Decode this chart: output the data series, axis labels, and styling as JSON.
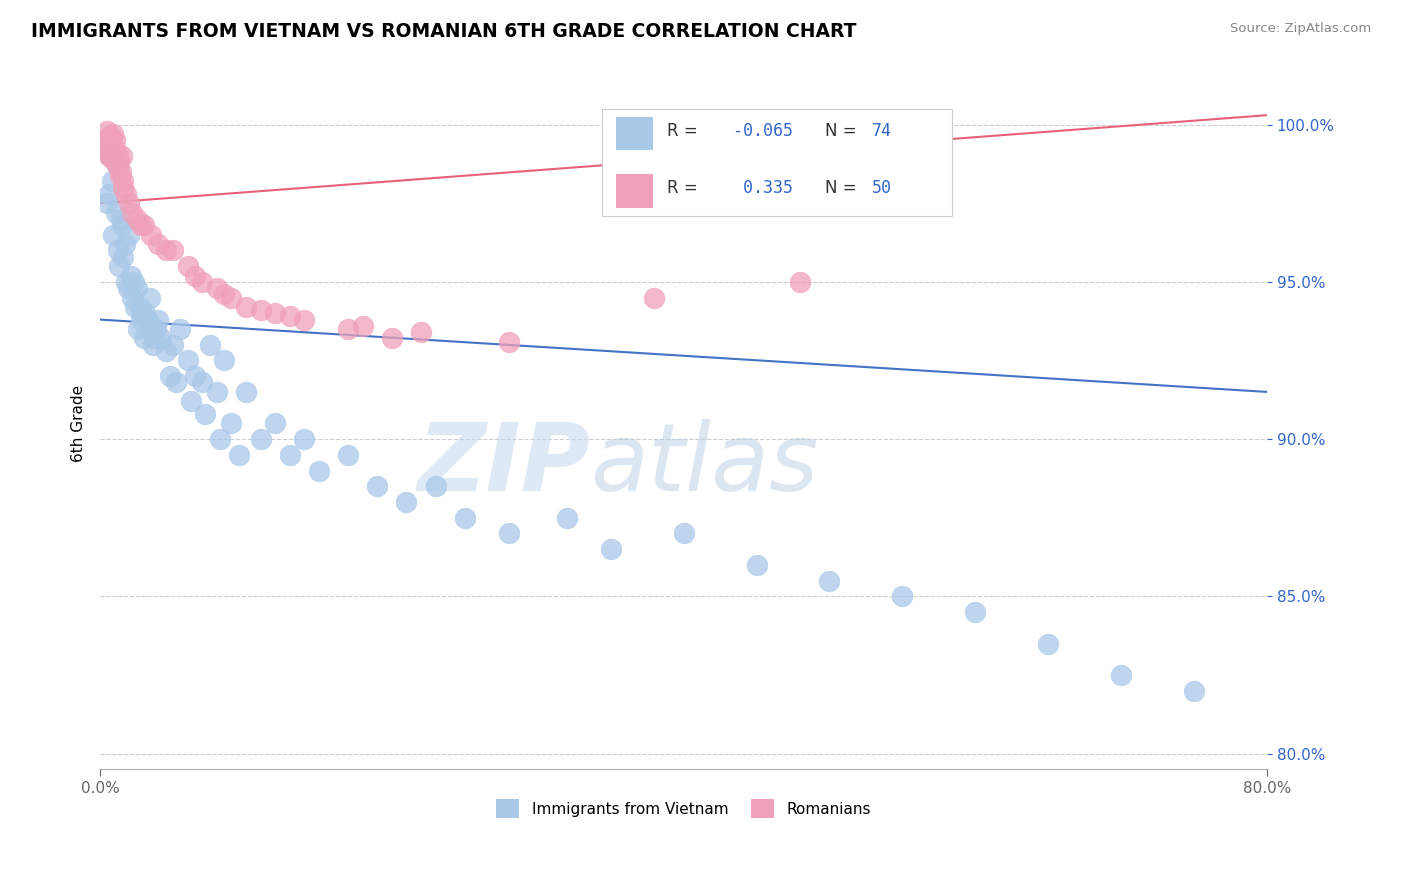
{
  "title": "IMMIGRANTS FROM VIETNAM VS ROMANIAN 6TH GRADE CORRELATION CHART",
  "source": "Source: ZipAtlas.com",
  "ylabel": "6th Grade",
  "yticks": [
    80.0,
    85.0,
    90.0,
    95.0,
    100.0
  ],
  "ytick_labels": [
    "80.0%",
    "85.0%",
    "90.0%",
    "95.0%",
    "100.0%"
  ],
  "xlim": [
    0.0,
    80.0
  ],
  "ylim": [
    79.5,
    101.5
  ],
  "legend1_label": "Immigrants from Vietnam",
  "legend2_label": "Romanians",
  "R_blue": -0.065,
  "N_blue": 74,
  "R_pink": 0.335,
  "N_pink": 50,
  "blue_color": "#A8C8E8",
  "pink_color": "#F0A0B8",
  "blue_line_color": "#4472C4",
  "pink_line_color": "#E8607A",
  "watermark_zip": "ZIP",
  "watermark_atlas": "atlas",
  "blue_trend_y0": 93.8,
  "blue_trend_y1": 91.5,
  "pink_trend_y0": 97.5,
  "pink_trend_y1": 100.3,
  "vietnam_x": [
    0.5,
    0.6,
    0.7,
    0.8,
    0.9,
    1.0,
    1.1,
    1.2,
    1.3,
    1.4,
    1.5,
    1.6,
    1.7,
    1.8,
    1.9,
    2.0,
    2.1,
    2.2,
    2.3,
    2.4,
    2.5,
    2.6,
    2.7,
    2.8,
    2.9,
    3.0,
    3.2,
    3.4,
    3.6,
    3.8,
    4.0,
    4.2,
    4.5,
    5.0,
    5.5,
    6.0,
    6.5,
    7.0,
    7.5,
    8.0,
    8.5,
    9.0,
    10.0,
    11.0,
    12.0,
    13.0,
    14.0,
    15.0,
    17.0,
    19.0,
    21.0,
    23.0,
    25.0,
    28.0,
    32.0,
    35.0,
    40.0,
    45.0,
    50.0,
    55.0,
    60.0,
    65.0,
    70.0,
    75.0,
    3.1,
    3.3,
    3.5,
    3.7,
    4.8,
    5.2,
    6.2,
    7.2,
    8.2,
    9.5
  ],
  "vietnam_y": [
    97.5,
    97.8,
    99.0,
    98.2,
    96.5,
    98.8,
    97.2,
    96.0,
    95.5,
    97.0,
    96.8,
    95.8,
    96.2,
    95.0,
    94.8,
    96.5,
    95.2,
    94.5,
    95.0,
    94.2,
    94.8,
    93.5,
    94.2,
    93.8,
    94.0,
    93.2,
    93.8,
    94.5,
    93.0,
    93.5,
    93.8,
    93.2,
    92.8,
    93.0,
    93.5,
    92.5,
    92.0,
    91.8,
    93.0,
    91.5,
    92.5,
    90.5,
    91.5,
    90.0,
    90.5,
    89.5,
    90.0,
    89.0,
    89.5,
    88.5,
    88.0,
    88.5,
    87.5,
    87.0,
    87.5,
    86.5,
    87.0,
    86.0,
    85.5,
    85.0,
    84.5,
    83.5,
    82.5,
    82.0,
    94.0,
    93.8,
    93.5,
    93.2,
    92.0,
    91.8,
    91.2,
    90.8,
    90.0,
    89.5
  ],
  "romanian_x": [
    0.3,
    0.4,
    0.5,
    0.6,
    0.7,
    0.8,
    0.9,
    1.0,
    1.1,
    1.2,
    1.3,
    1.4,
    1.5,
    1.6,
    1.8,
    2.0,
    2.5,
    3.0,
    3.5,
    4.0,
    5.0,
    6.0,
    7.0,
    8.0,
    9.0,
    10.0,
    12.0,
    14.0,
    17.0,
    20.0,
    0.45,
    0.55,
    0.65,
    0.75,
    0.85,
    1.15,
    1.35,
    1.55,
    2.2,
    2.8,
    4.5,
    6.5,
    8.5,
    11.0,
    13.0,
    18.0,
    22.0,
    28.0,
    38.0,
    48.0
  ],
  "romanian_y": [
    99.2,
    99.5,
    99.8,
    99.0,
    99.6,
    99.3,
    99.7,
    99.5,
    99.2,
    99.0,
    98.8,
    98.5,
    99.0,
    98.2,
    97.8,
    97.5,
    97.0,
    96.8,
    96.5,
    96.2,
    96.0,
    95.5,
    95.0,
    94.8,
    94.5,
    94.2,
    94.0,
    93.8,
    93.5,
    93.2,
    99.4,
    99.6,
    99.2,
    99.0,
    98.9,
    98.7,
    98.4,
    98.0,
    97.2,
    96.8,
    96.0,
    95.2,
    94.6,
    94.1,
    93.9,
    93.6,
    93.4,
    93.1,
    94.5,
    95.0
  ]
}
